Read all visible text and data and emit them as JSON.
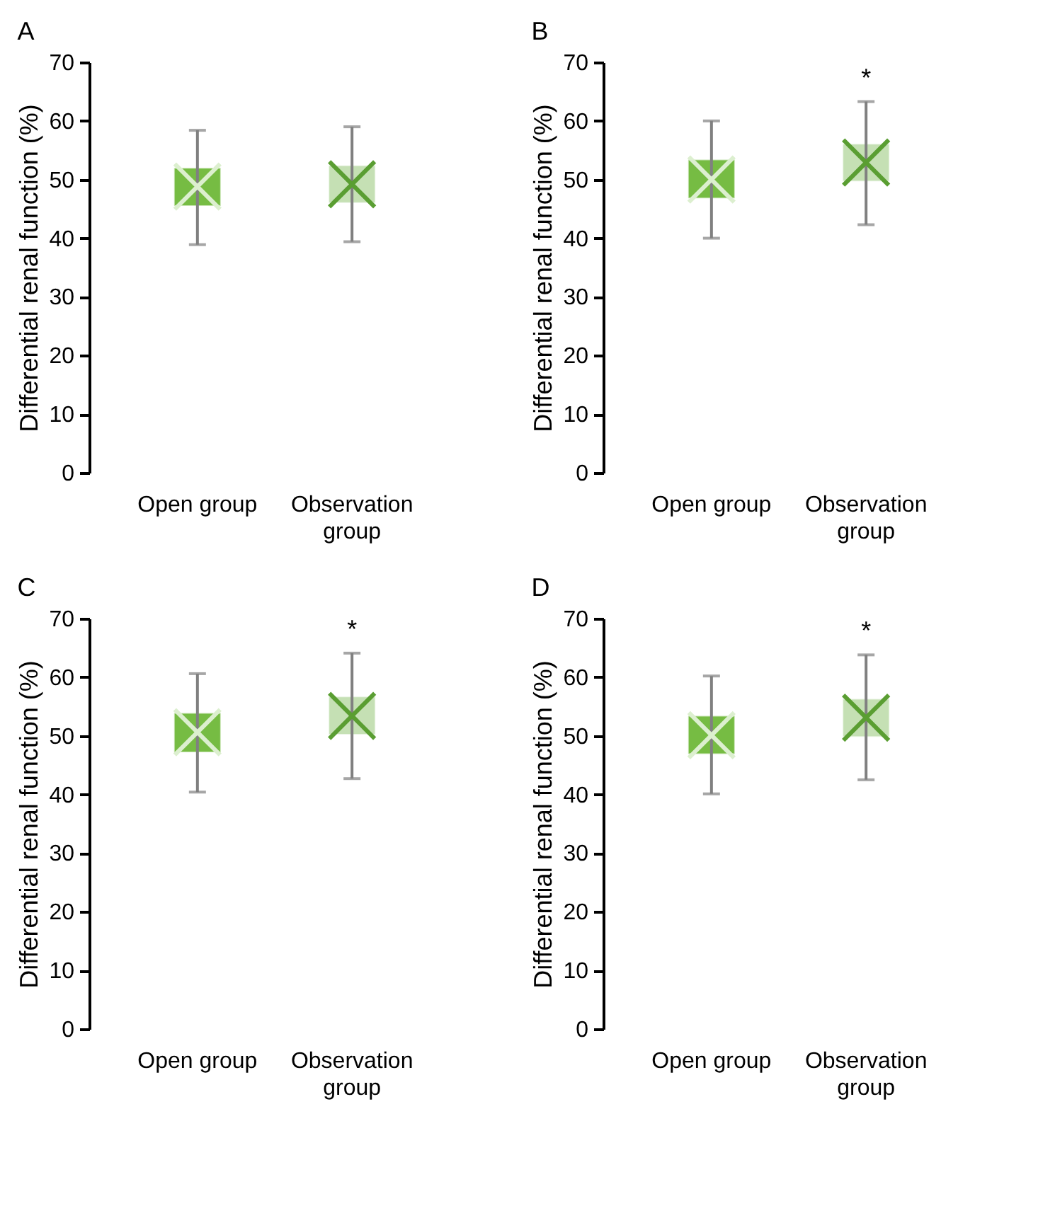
{
  "chart_data": [
    {
      "type": "box",
      "title": "A",
      "ylabel": "Differential renal function (%)",
      "categories": [
        "Open group",
        "Observation group"
      ],
      "colors": [
        "#76bc43",
        "#c5e0b4"
      ],
      "boxes": [
        {
          "low": 38.9,
          "q1": 45.5,
          "median": 48.8,
          "q3": 52.0,
          "high": 58.4
        },
        {
          "low": 39.4,
          "q1": 46.0,
          "median": 49.2,
          "q3": 52.4,
          "high": 59.0
        }
      ],
      "ylim": [
        0,
        70
      ],
      "yticks": [
        0,
        10,
        20,
        30,
        40,
        50,
        60,
        70
      ],
      "grid": false
    },
    {
      "type": "box",
      "title": "B",
      "ylabel": "Differential renal function (%)",
      "categories": [
        "Open group",
        "Observation group"
      ],
      "colors": [
        "#76bc43",
        "#c5e0b4"
      ],
      "boxes": [
        {
          "low": 40.0,
          "q1": 46.8,
          "median": 50.0,
          "q3": 53.4,
          "high": 60.0
        },
        {
          "low": 42.3,
          "q1": 49.7,
          "median": 52.9,
          "q3": 56.1,
          "high": 63.3
        }
      ],
      "ylim": [
        0,
        70
      ],
      "yticks": [
        0,
        10,
        20,
        30,
        40,
        50,
        60,
        70
      ],
      "grid": false,
      "annotations": [
        "*"
      ]
    },
    {
      "type": "box",
      "title": "C",
      "ylabel": "Differential renal function (%)",
      "categories": [
        "Open group",
        "Observation group"
      ],
      "colors": [
        "#76bc43",
        "#c5e0b4"
      ],
      "boxes": [
        {
          "low": 40.4,
          "q1": 47.2,
          "median": 50.6,
          "q3": 53.9,
          "high": 60.6
        },
        {
          "low": 42.7,
          "q1": 50.2,
          "median": 53.4,
          "q3": 56.7,
          "high": 64.1
        }
      ],
      "ylim": [
        0,
        70
      ],
      "yticks": [
        0,
        10,
        20,
        30,
        40,
        50,
        60,
        70
      ],
      "grid": false,
      "annotations": [
        "*"
      ]
    },
    {
      "type": "box",
      "title": "D",
      "ylabel": "Differential renal function (%)",
      "categories": [
        "Open group",
        "Observation group"
      ],
      "colors": [
        "#76bc43",
        "#c5e0b4"
      ],
      "boxes": [
        {
          "low": 40.1,
          "q1": 46.9,
          "median": 50.1,
          "q3": 53.4,
          "high": 60.2
        },
        {
          "low": 42.5,
          "q1": 49.8,
          "median": 53.1,
          "q3": 56.3,
          "high": 63.8
        }
      ],
      "ylim": [
        0,
        70
      ],
      "yticks": [
        0,
        10,
        20,
        30,
        40,
        50,
        60,
        70
      ],
      "grid": false,
      "annotations": [
        "*"
      ]
    }
  ]
}
